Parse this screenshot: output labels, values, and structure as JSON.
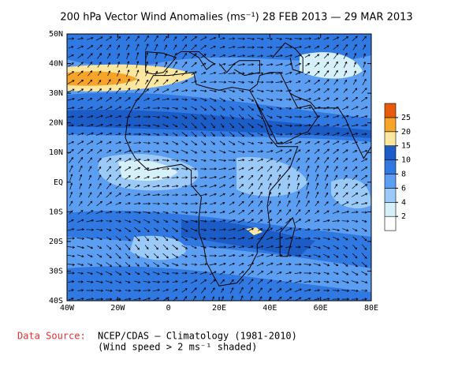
{
  "map": {
    "title": "200 hPa Vector Wind Anomalies (ms⁻¹) 28 FEB 2013 — 29 MAR 2013",
    "xlim": [
      -40,
      80
    ],
    "ylim": [
      -40,
      50
    ],
    "xticks": [
      {
        "value": -40,
        "label": "40W"
      },
      {
        "value": -20,
        "label": "20W"
      },
      0,
      {
        "value": 20,
        "label": "20E"
      },
      {
        "value": 40,
        "label": "40E"
      },
      {
        "value": 60,
        "label": "60E"
      },
      {
        "value": 80,
        "label": "80E"
      }
    ],
    "yticks": [
      {
        "value": -40,
        "label": "40S"
      },
      {
        "value": -30,
        "label": "30S"
      },
      {
        "value": -20,
        "label": "20S"
      },
      {
        "value": -10,
        "label": "10S"
      },
      {
        "value": 0,
        "label": "EQ"
      },
      {
        "value": 10,
        "label": "10N"
      },
      {
        "value": 20,
        "label": "20N"
      },
      {
        "value": 30,
        "label": "30N"
      },
      {
        "value": 40,
        "label": "40N"
      },
      {
        "value": 50,
        "label": "50N"
      }
    ],
    "colorbar": {
      "levels": [
        2,
        4,
        6,
        8,
        10,
        15,
        20,
        25
      ],
      "colors": [
        "#ffffff",
        "#d6f0fa",
        "#9ccaf8",
        "#5c9ef2",
        "#3078e2",
        "#1b5cc6",
        "#fbe7a0",
        "#f6a42a",
        "#e85a0c"
      ]
    },
    "source_label": "Data Source:",
    "source_lines": [
      "NCEP/CDAS — Climatology (1981-2010)",
      "(Wind speed > 2 ms⁻¹ shaded)"
    ]
  }
}
